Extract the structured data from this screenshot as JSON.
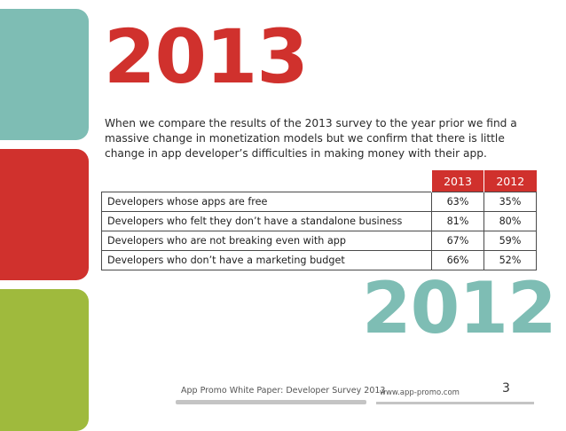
{
  "headline_year": "2013",
  "intro_text": "When we compare the results of the 2013 survey to the year prior we find a massive change in monetization models but we confirm that there is little change in app developer’s difficulties in making money with their app.",
  "table": {
    "columns": [
      "2013",
      "2012"
    ],
    "rows": [
      {
        "label": "Developers whose apps are free",
        "v2013": "63%",
        "v2012": "35%"
      },
      {
        "label": "Developers who felt they don’t have a standalone business",
        "v2013": "81%",
        "v2012": "80%"
      },
      {
        "label": "Developers who are not breaking even with app",
        "v2013": "67%",
        "v2012": "59%"
      },
      {
        "label": "Developers who don’t have a marketing budget",
        "v2013": "66%",
        "v2012": "52%"
      }
    ]
  },
  "secondary_year": "2012",
  "footer": {
    "title": "App Promo White Paper: Developer Survey 2013",
    "url": "www.app-promo.com",
    "page_number": "3"
  },
  "colors": {
    "red": "#d0312d",
    "teal": "#7ebdb4",
    "green": "#9fba3d"
  }
}
